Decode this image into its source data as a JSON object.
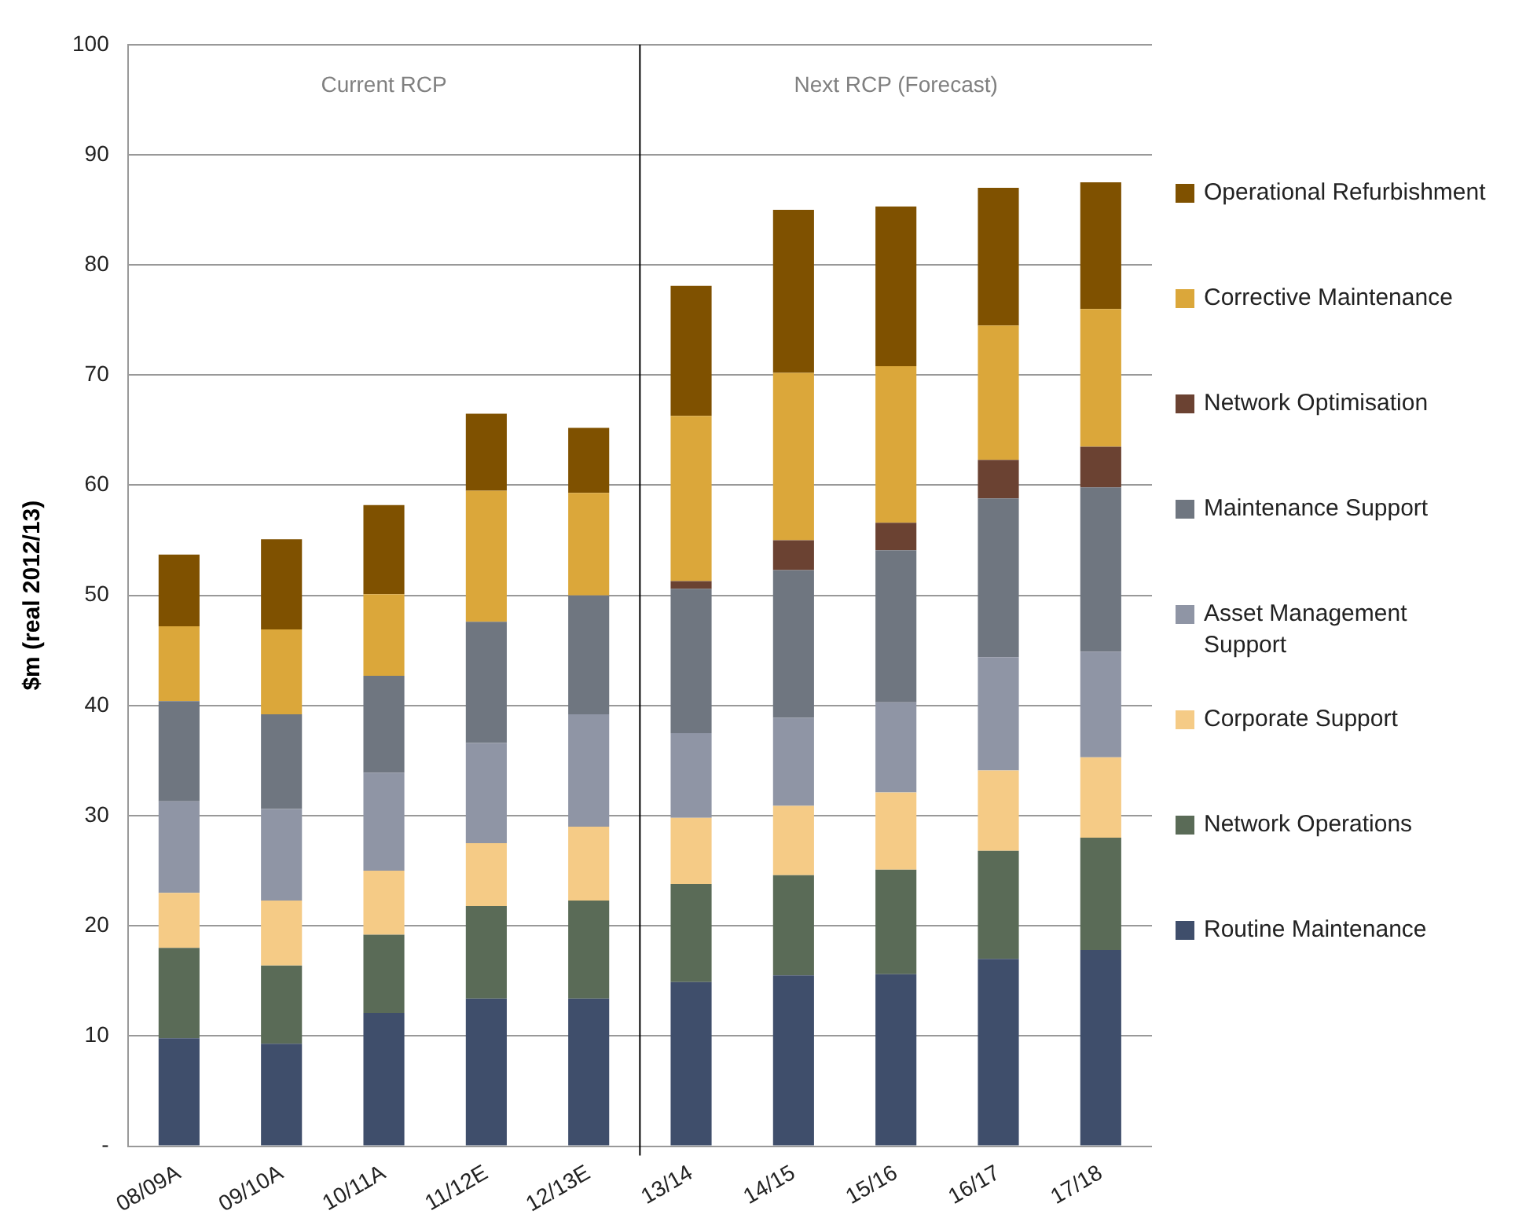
{
  "chart_data": {
    "type": "bar",
    "stacked": true,
    "ylabel": "$m (real 2012/13)",
    "categories": [
      "08/09A",
      "09/10A",
      "10/11A",
      "11/12E",
      "12/13E",
      "13/14",
      "14/15",
      "15/16",
      "16/17",
      "17/18"
    ],
    "series": [
      {
        "name": "Routine Maintenance",
        "color": "#3f4e6b",
        "values": [
          9.8,
          9.3,
          12.1,
          13.4,
          13.4,
          14.9,
          15.5,
          15.6,
          17,
          17.8
        ]
      },
      {
        "name": "Network Operations",
        "color": "#5a6b57",
        "values": [
          8.2,
          7.1,
          7.1,
          8.4,
          8.9,
          8.9,
          9.1,
          9.5,
          9.8,
          10.2
        ]
      },
      {
        "name": "Corporate Support",
        "color": "#f5cb86",
        "values": [
          5,
          5.9,
          5.8,
          5.7,
          6.7,
          6,
          6.3,
          7,
          7.3,
          7.3
        ]
      },
      {
        "name": "Asset Management Support",
        "color": "#8f95a5",
        "values": [
          8.3,
          8.3,
          8.9,
          9.1,
          10.2,
          7.7,
          8,
          8.2,
          10.3,
          9.6
        ]
      },
      {
        "name": "Maintenance Support",
        "color": "#6f7680",
        "values": [
          9.1,
          8.6,
          8.8,
          11,
          10.8,
          13.1,
          13.4,
          13.8,
          14.4,
          14.9
        ]
      },
      {
        "name": "Network Optimisation",
        "color": "#6b4232",
        "values": [
          0,
          0,
          0,
          0,
          0,
          0.7,
          2.7,
          2.5,
          3.5,
          3.7
        ]
      },
      {
        "name": "Corrective Maintenance",
        "color": "#dba73a",
        "values": [
          6.8,
          7.7,
          7.4,
          11.9,
          9.3,
          15,
          15.2,
          14.2,
          12.2,
          12.5
        ]
      },
      {
        "name": "Operational Refurbishment",
        "color": "#7f5100",
        "values": [
          6.5,
          8.2,
          8.1,
          7,
          5.9,
          11.8,
          14.8,
          14.5,
          12.5,
          11.5
        ]
      }
    ],
    "ylim": [
      0,
      100
    ],
    "yticks": [
      {
        "value": 0,
        "label": "-"
      },
      10,
      20,
      30,
      40,
      50,
      60,
      70,
      80,
      90,
      100
    ],
    "grid": "y",
    "legend": "right",
    "annotations": [
      "Current RCP",
      "Next RCP (Forecast)"
    ],
    "ref_lines": [
      {
        "axis": "x",
        "value": "13/14",
        "color": "#000000"
      }
    ]
  }
}
